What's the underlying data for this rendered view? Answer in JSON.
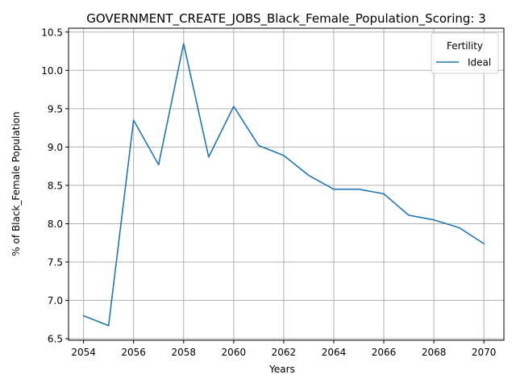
{
  "chart_data": {
    "type": "line",
    "title": "GOVERNMENT_CREATE_JOBS_Black_Female_Population_Scoring: 3",
    "xlabel": "Years",
    "ylabel": "% of Black_Female Population",
    "xlim": [
      2053.4,
      2070.8
    ],
    "ylim": [
      6.48,
      10.55
    ],
    "xticks": [
      2054,
      2056,
      2058,
      2060,
      2062,
      2064,
      2066,
      2068,
      2070
    ],
    "yticks": [
      6.5,
      7.0,
      7.5,
      8.0,
      8.5,
      9.0,
      9.5,
      10.0,
      10.5
    ],
    "grid": true,
    "legend": {
      "title": "Fertility",
      "placement": "top-right"
    },
    "series": [
      {
        "name": "Ideal",
        "color": "#1f77b4",
        "x": [
          2054,
          2055,
          2056,
          2057,
          2058,
          2059,
          2060,
          2061,
          2062,
          2063,
          2064,
          2065,
          2066,
          2067,
          2068,
          2069,
          2070
        ],
        "y": [
          6.8,
          6.67,
          9.35,
          8.77,
          10.35,
          8.87,
          9.53,
          9.02,
          8.89,
          8.63,
          8.45,
          8.45,
          8.39,
          8.11,
          8.05,
          7.95,
          7.74
        ]
      }
    ]
  }
}
